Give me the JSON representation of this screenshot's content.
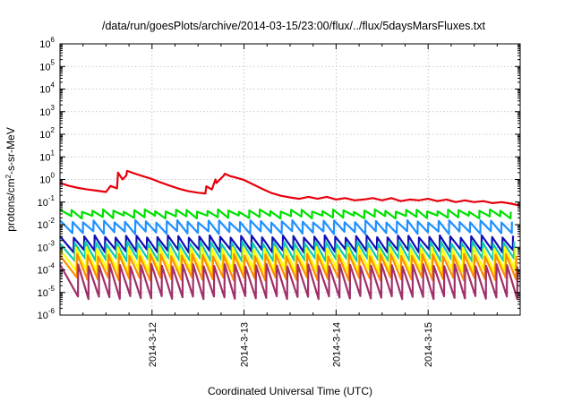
{
  "chart_data": {
    "type": "line",
    "title": "/data/run/goesPlots/archive/2014-03-15/23:00/flux/../flux/5daysMarsFluxes.txt",
    "xlabel": "Coordinated Universal Time (UTC)",
    "ylabel": "protons/cm2-s-sr-MeV",
    "ylabel_parts": [
      "protons/cm",
      "2",
      "-s-sr-MeV"
    ],
    "yscale": "log",
    "ylim_exp": [
      -6,
      6
    ],
    "xlim_days": [
      11.0,
      16.0
    ],
    "grid": true,
    "x_ticks": [
      {
        "label": "2014-3-12",
        "day": 12
      },
      {
        "label": "2014-3-13",
        "day": 13
      },
      {
        "label": "2014-3-14",
        "day": 14
      },
      {
        "label": "2014-3-15",
        "day": 15
      }
    ],
    "y_ticks": [
      {
        "base": "10",
        "exp": "-6",
        "value_exp": -6
      },
      {
        "base": "10",
        "exp": "-5",
        "value_exp": -5
      },
      {
        "base": "10",
        "exp": "-4",
        "value_exp": -4
      },
      {
        "base": "10",
        "exp": "-3",
        "value_exp": -3
      },
      {
        "base": "10",
        "exp": "-2",
        "value_exp": -2
      },
      {
        "base": "10",
        "exp": "-1",
        "value_exp": -1
      },
      {
        "base": "10",
        "exp": "0",
        "value_exp": 0
      },
      {
        "base": "10",
        "exp": "1",
        "value_exp": 1
      },
      {
        "base": "10",
        "exp": "2",
        "value_exp": 2
      },
      {
        "base": "10",
        "exp": "3",
        "value_exp": 3
      },
      {
        "base": "10",
        "exp": "4",
        "value_exp": 4
      },
      {
        "base": "10",
        "exp": "5",
        "value_exp": 5
      },
      {
        "base": "10",
        "exp": "6",
        "value_exp": 6
      }
    ],
    "series": [
      {
        "color": "#e8000b",
        "x": [
          11.0,
          11.1,
          11.2,
          11.3,
          11.4,
          11.5,
          11.55,
          11.62,
          11.63,
          11.68,
          11.72,
          11.73,
          11.8,
          11.9,
          12.0,
          12.1,
          12.2,
          12.3,
          12.4,
          12.5,
          12.58,
          12.59,
          12.65,
          12.69,
          12.7,
          12.78,
          12.79,
          12.85,
          12.9,
          13.0,
          13.1,
          13.2,
          13.3,
          13.4,
          13.5,
          13.6,
          13.7,
          13.8,
          13.9,
          14.0,
          14.1,
          14.2,
          14.3,
          14.4,
          14.5,
          14.6,
          14.7,
          14.8,
          14.9,
          15.0,
          15.1,
          15.2,
          15.3,
          15.4,
          15.5,
          15.6,
          15.7,
          15.8,
          15.9,
          16.0
        ],
        "y": [
          0.7,
          0.52,
          0.42,
          0.36,
          0.32,
          0.28,
          0.52,
          0.4,
          2.0,
          1.0,
          1.5,
          2.4,
          1.9,
          1.4,
          1.05,
          0.72,
          0.52,
          0.38,
          0.3,
          0.26,
          0.24,
          0.5,
          0.36,
          1.0,
          0.7,
          1.5,
          1.8,
          1.4,
          1.25,
          0.95,
          0.6,
          0.38,
          0.25,
          0.19,
          0.16,
          0.14,
          0.17,
          0.14,
          0.17,
          0.13,
          0.15,
          0.12,
          0.13,
          0.15,
          0.12,
          0.15,
          0.11,
          0.13,
          0.12,
          0.14,
          0.11,
          0.13,
          0.1,
          0.12,
          0.1,
          0.11,
          0.09,
          0.1,
          0.085,
          0.07
        ]
      },
      {
        "color": "#00e000",
        "sawtooth": true,
        "hi": 0.042,
        "lo": 0.022,
        "n": 44
      },
      {
        "color": "#1e90ff",
        "sawtooth": true,
        "hi": 0.014,
        "lo": 0.0045,
        "n": 44
      },
      {
        "color": "#1010b4",
        "sawtooth": true,
        "hi": 0.003,
        "lo": 0.0007,
        "n": 44
      },
      {
        "color": "#10c8b4",
        "sawtooth": true,
        "hi": 0.0016,
        "lo": 0.00028,
        "n": 44
      },
      {
        "color": "#ffff00",
        "sawtooth": true,
        "hi": 0.0009,
        "lo": 9e-05,
        "n": 44
      },
      {
        "color": "#ff8c00",
        "sawtooth": true,
        "hi": 0.00045,
        "lo": 4e-05,
        "n": 44
      },
      {
        "color": "#a0306a",
        "sawtooth": true,
        "hi": 0.00016,
        "lo": 6e-06,
        "n": 44
      }
    ]
  }
}
